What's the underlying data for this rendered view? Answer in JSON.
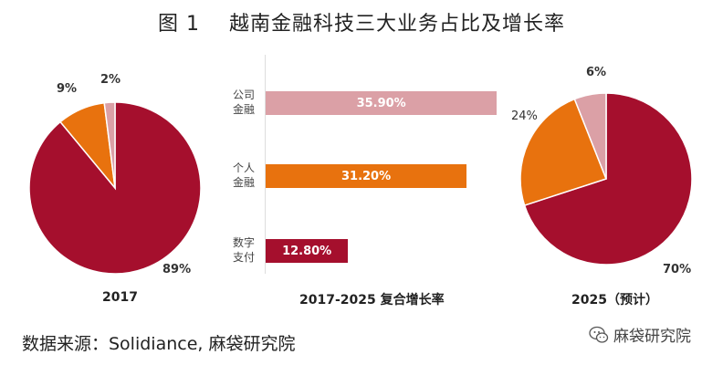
{
  "title": {
    "fig": "图 1",
    "text": "越南金融科技三大业务占比及增长率"
  },
  "colors": {
    "dark_red": "#A50F2D",
    "orange": "#E8720E",
    "pink": "#DBA0A6"
  },
  "chart_data": [
    {
      "type": "pie",
      "xlabel": "2017",
      "slices": [
        {
          "category": "数字支付",
          "value": 89,
          "label": "89%",
          "color": "#A50F2D"
        },
        {
          "category": "个人金融",
          "value": 9,
          "label": "9%",
          "color": "#E8720E"
        },
        {
          "category": "公司金融",
          "value": 2,
          "label": "2%",
          "color": "#DBA0A6"
        }
      ]
    },
    {
      "type": "bar",
      "orientation": "horizontal",
      "xlabel": "2017-2025 复合增长率",
      "categories": [
        "公司\n金融",
        "个人\n金融",
        "数字\n支付"
      ],
      "values": [
        35.9,
        31.2,
        12.8
      ],
      "value_labels": [
        "35.90%",
        "31.20%",
        "12.80%"
      ],
      "colors": [
        "#DBA0A6",
        "#E8720E",
        "#A50F2D"
      ],
      "xlim": [
        0,
        36
      ]
    },
    {
      "type": "pie",
      "xlabel": "2025（预计）",
      "slices": [
        {
          "category": "数字支付",
          "value": 70,
          "label": "70%",
          "color": "#A50F2D"
        },
        {
          "category": "个人金融",
          "value": 24,
          "label": "24%",
          "color": "#E8720E"
        },
        {
          "category": "公司金融",
          "value": 6,
          "label": "6%",
          "color": "#DBA0A6"
        }
      ]
    }
  ],
  "source": "数据来源：Solidiance, 麻袋研究院",
  "watermark": "麻袋研究院",
  "watermark_icon": "wechat-icon"
}
